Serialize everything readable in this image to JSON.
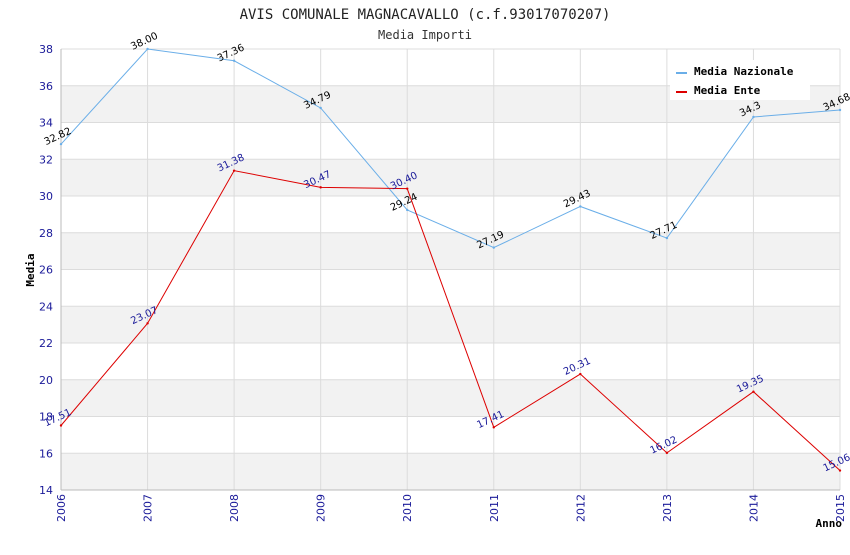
{
  "chart_data": {
    "type": "line",
    "title": "AVIS COMUNALE MAGNACAVALLO (c.f.93017070207)",
    "subtitle": "Media Importi",
    "xlabel": "Anno",
    "ylabel": "Media",
    "x": [
      "2006",
      "2007",
      "2008",
      "2009",
      "2010",
      "2011",
      "2012",
      "2013",
      "2014",
      "2015"
    ],
    "ylim": [
      14,
      38
    ],
    "yticks": [
      "14",
      "16",
      "18",
      "20",
      "22",
      "24",
      "26",
      "28",
      "30",
      "32",
      "34",
      "36",
      "38"
    ],
    "grid": true,
    "legend_position": "top-right",
    "series": [
      {
        "name": "Media Nazionale",
        "color": "#6aaee8",
        "values": [
          32.82,
          38.0,
          37.36,
          34.79,
          29.24,
          27.19,
          29.43,
          27.71,
          34.3,
          34.68
        ],
        "labels": [
          "32.82",
          "38.00",
          "37.36",
          "34.79",
          "29.24",
          "27.19",
          "29.43",
          "27.71",
          "34.3",
          "34.68"
        ]
      },
      {
        "name": "Media Ente",
        "color": "#dd0000",
        "values": [
          17.51,
          23.07,
          31.38,
          30.47,
          30.4,
          17.41,
          20.31,
          16.02,
          19.35,
          15.06
        ],
        "labels": [
          "17.51",
          "23.07",
          "31.38",
          "30.47",
          "30.40",
          "17.41",
          "20.31",
          "16.02",
          "19.35",
          "15.06"
        ]
      }
    ]
  }
}
